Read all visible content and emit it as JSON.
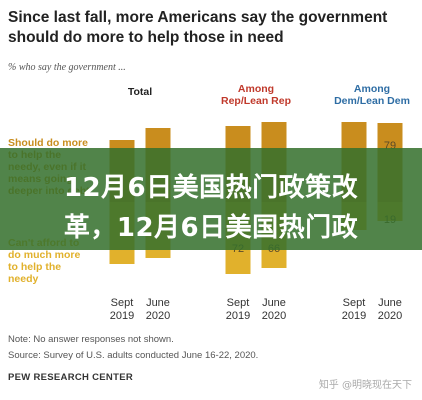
{
  "chart_data": {
    "type": "bar",
    "headline": "Since last fall, more Americans say the government should do more to help those in need",
    "subtitle": "% who say the government ...",
    "legend": [
      {
        "label_lines": [
          "Should do more",
          "to help the",
          "needy, even if it",
          "means going",
          "deeper into debt"
        ],
        "color": "#c98d1e"
      },
      {
        "label_lines": [
          "Can't afford to",
          "do much more",
          "to help the",
          "needy"
        ],
        "color": "#e1b12c"
      }
    ],
    "groups": [
      {
        "title_lines": [
          "Total"
        ],
        "title_color": "#222222",
        "bars": [
          {
            "tick_lines": [
              "Sept",
              "2019"
            ]
          },
          {
            "tick_lines": [
              "June",
              "2020"
            ]
          }
        ]
      },
      {
        "title_lines": [
          "Among",
          "Rep/Lean Rep"
        ],
        "title_color": "#c0392b",
        "bars": [
          {
            "tick_lines": [
              "Sept",
              "2019"
            ],
            "cant_afford": 72
          },
          {
            "tick_lines": [
              "June",
              "2020"
            ],
            "cant_afford": 66
          }
        ]
      },
      {
        "title_lines": [
          "Among",
          "Dem/Lean Dem"
        ],
        "title_color": "#2e6da4",
        "bars": [
          {
            "tick_lines": [
              "Sept",
              "2019"
            ]
          },
          {
            "tick_lines": [
              "June",
              "2020"
            ],
            "should_do_more": 79,
            "cant_afford": 19
          }
        ]
      }
    ],
    "colors": {
      "should_do_more": "#c98d1e",
      "cant_afford": "#e1b12c",
      "value_label": "#5a4a2a"
    }
  },
  "overlay": {
    "line1": "12月6日美国热门政策改",
    "line2": "革，12月6日美国热门政"
  },
  "footer": {
    "note": "Note: No answer responses not shown.",
    "source": "Source: Survey of U.S. adults conducted June 16-22, 2020.",
    "credit": "PEW RESEARCH CENTER",
    "watermark": "知乎 @明晓现在天下"
  }
}
